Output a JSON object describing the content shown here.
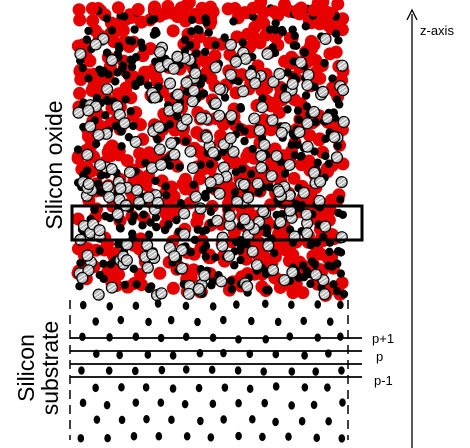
{
  "axis_label": "z-axis",
  "regions": {
    "oxide": "Silicon oxide",
    "substrate": [
      "Silicon",
      "substrate"
    ]
  },
  "layers": [
    "p+1",
    "p",
    "p-1"
  ]
}
